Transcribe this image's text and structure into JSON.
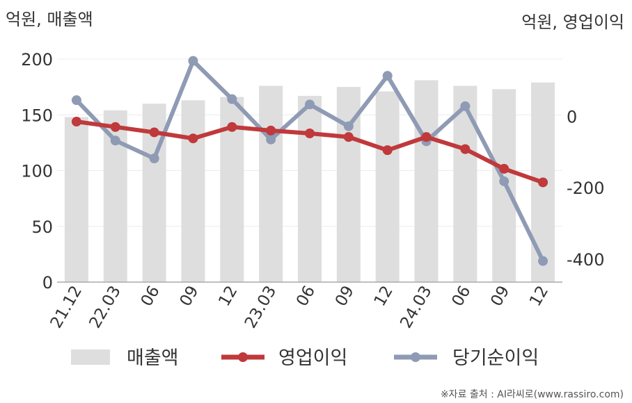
{
  "chart_data": {
    "type": "bar",
    "left_unit_label": "억원, 매출액",
    "right_unit_label": "억원, 영업이익",
    "source": "※자료 출처 : AI라씨로(www.rassiro.com)",
    "categories": [
      "21.12",
      "22.03",
      "06",
      "09",
      "12",
      "23.03",
      "06",
      "09",
      "12",
      "24.03",
      "06",
      "09",
      "12"
    ],
    "left_axis": {
      "ticks": [
        "0",
        "50",
        "100",
        "150",
        "200"
      ],
      "range": [
        0,
        200
      ]
    },
    "right_axis": {
      "ticks": [
        "0",
        "-200",
        "-400"
      ],
      "range": [
        -464,
        160
      ]
    },
    "series": [
      {
        "name": "매출액",
        "kind": "bar",
        "axis": "left",
        "color": "#dedede",
        "values": [
          148,
          154,
          160,
          163,
          166,
          176,
          167,
          175,
          171,
          181,
          176,
          173,
          179
        ]
      },
      {
        "name": "영업이익",
        "kind": "line",
        "axis": "right",
        "color": "#c0393b",
        "values": [
          -15,
          -30,
          -45,
          -62,
          -30,
          -40,
          -48,
          -58,
          -95,
          -58,
          -92,
          -147,
          -185
        ]
      },
      {
        "name": "당기순이익",
        "kind": "line",
        "axis": "right",
        "color": "#8f9bb4",
        "values": [
          45,
          -68,
          -118,
          155,
          48,
          -65,
          33,
          -28,
          113,
          -70,
          28,
          -182,
          -405
        ]
      }
    ],
    "grid": true,
    "legend": "bottom"
  }
}
